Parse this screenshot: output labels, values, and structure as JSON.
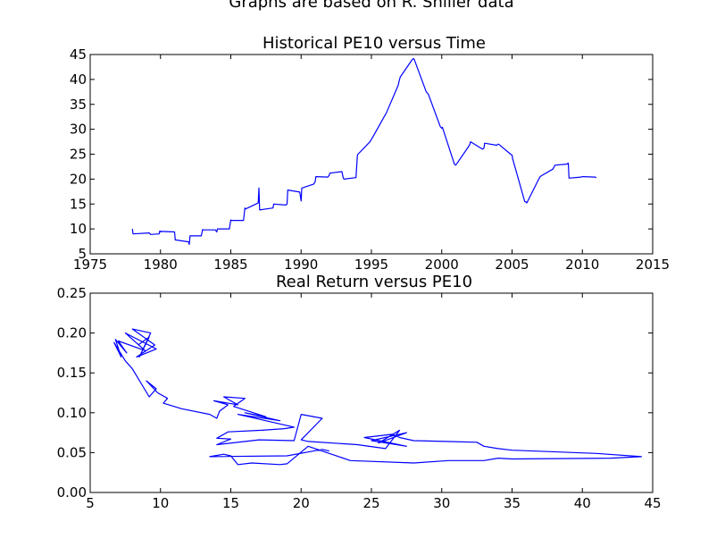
{
  "suptitle": "Graphs are based on R. Shiller data",
  "chart_data": [
    {
      "type": "line",
      "title": "Historical PE10 versus Time",
      "xlabel": "",
      "ylabel": "",
      "xlim": [
        1975,
        2015
      ],
      "ylim": [
        5,
        45
      ],
      "xticks": [
        "1975",
        "1980",
        "1985",
        "1990",
        "1995",
        "2000",
        "2005",
        "2010",
        "2015"
      ],
      "yticks": [
        "5",
        "10",
        "15",
        "20",
        "25",
        "30",
        "35",
        "40",
        "45"
      ],
      "grid": false,
      "color": "#0000ff",
      "x": [
        1978.0,
        1978.05,
        1979.2,
        1979.3,
        1979.9,
        1979.95,
        1980.0,
        1980.05,
        1981.0,
        1981.05,
        1982.0,
        1982.05,
        1982.1,
        1982.9,
        1983.0,
        1983.05,
        1983.9,
        1984.0,
        1984.05,
        1984.9,
        1985.0,
        1985.05,
        1985.9,
        1986.0,
        1986.05,
        1986.95,
        1987.0,
        1987.05,
        1987.5,
        1988.0,
        1988.05,
        1988.9,
        1989.0,
        1989.05,
        1989.9,
        1990.0,
        1990.05,
        1990.9,
        1991.0,
        1991.05,
        1991.9,
        1992.0,
        1992.05,
        1992.9,
        1993.0,
        1993.05,
        1993.9,
        1994.0,
        1994.05,
        1994.9,
        1995.0,
        1995.05,
        1995.9,
        1996.0,
        1996.05,
        1996.9,
        1997.0,
        1997.05,
        1997.9,
        1998.0,
        1998.05,
        1998.9,
        1999.0,
        1999.05,
        1999.9,
        2000.0,
        2000.05,
        2000.9,
        2001.0,
        2001.05,
        2001.9,
        2002.0,
        2002.05,
        2002.9,
        2003.0,
        2003.05,
        2003.9,
        2004.0,
        2004.05,
        2004.9,
        2005.0,
        2005.05,
        2005.9,
        2006.0,
        2006.05,
        2006.9,
        2007.0,
        2007.05,
        2007.9,
        2008.0,
        2008.05,
        2008.9,
        2009.0,
        2009.05,
        2009.9,
        2010.0,
        2010.05,
        2010.9,
        2011.0
      ],
      "y": [
        10.0,
        9.0,
        9.2,
        8.9,
        9.0,
        9.6,
        9.4,
        9.5,
        9.4,
        7.8,
        7.4,
        6.9,
        8.6,
        8.6,
        9.9,
        9.8,
        9.8,
        9.4,
        10.0,
        10.0,
        11.8,
        11.7,
        11.7,
        14.2,
        14.0,
        15.2,
        18.2,
        13.8,
        14.0,
        14.2,
        15.0,
        14.8,
        15.0,
        17.8,
        17.4,
        15.6,
        18.2,
        19.0,
        19.5,
        20.5,
        20.4,
        20.8,
        21.2,
        21.5,
        20.2,
        20.0,
        20.3,
        24.8,
        25.0,
        27.5,
        28.0,
        28.2,
        32.5,
        33.0,
        33.2,
        38.8,
        40.0,
        40.5,
        44.0,
        44.2,
        44.0,
        37.5,
        37.2,
        37.0,
        30.5,
        30.2,
        30.4,
        23.0,
        22.8,
        23.0,
        26.5,
        27.0,
        27.5,
        26.0,
        26.2,
        27.2,
        26.8,
        27.0,
        27.0,
        25.0,
        24.8,
        24.0,
        15.5,
        15.4,
        15.2,
        20.0,
        20.5,
        20.6,
        22.0,
        22.5,
        22.8,
        23.0,
        23.2,
        20.2,
        20.4,
        20.5,
        20.5,
        20.4,
        20.3
      ]
    },
    {
      "type": "line",
      "title": "Real Return versus PE10",
      "xlabel": "",
      "ylabel": "",
      "xlim": [
        5,
        45
      ],
      "ylim": [
        0.0,
        0.25
      ],
      "xticks": [
        "5",
        "10",
        "15",
        "20",
        "25",
        "30",
        "35",
        "40",
        "45"
      ],
      "yticks": [
        "0.00",
        "0.05",
        "0.10",
        "0.15",
        "0.20",
        "0.25"
      ],
      "grid": false,
      "color": "#0000ff",
      "x": [
        8.4,
        9.2,
        8.5,
        9.3,
        8.0,
        9.6,
        8.3,
        9.7,
        7.5,
        8.9,
        7.0,
        7.6,
        6.8,
        7.2,
        6.7,
        7.5,
        8.0,
        9.2,
        9.7,
        9.0,
        9.8,
        10.5,
        10.2,
        11.5,
        13.5,
        14.0,
        14.2,
        14.8,
        13.8,
        15.5,
        14.5,
        16.0,
        15.2,
        17.5,
        16.0,
        18.5,
        15.5,
        19.5,
        18.8,
        17.2,
        14.8,
        14.0,
        15.0,
        14.0,
        17.0,
        19.5,
        20.0,
        21.5,
        20.0,
        20.5,
        24.0,
        26.0,
        27.0,
        25.5,
        27.5,
        25.0,
        27.5,
        24.5,
        26.5,
        27.0,
        28.0,
        32.5,
        33.0,
        34.0,
        35.0,
        41.0,
        44.2,
        42.0,
        35.0,
        34.0,
        33.0,
        30.5,
        28.0,
        23.5,
        20.5,
        19.0,
        18.5,
        16.5,
        15.5,
        15.0,
        14.5,
        13.5,
        19.0,
        21.5,
        22.0
      ],
      "y": [
        0.185,
        0.195,
        0.17,
        0.2,
        0.205,
        0.185,
        0.17,
        0.18,
        0.2,
        0.178,
        0.19,
        0.175,
        0.192,
        0.17,
        0.188,
        0.165,
        0.155,
        0.12,
        0.13,
        0.14,
        0.125,
        0.118,
        0.112,
        0.105,
        0.098,
        0.093,
        0.102,
        0.11,
        0.115,
        0.11,
        0.12,
        0.118,
        0.108,
        0.095,
        0.1,
        0.09,
        0.098,
        0.082,
        0.08,
        0.078,
        0.076,
        0.068,
        0.067,
        0.06,
        0.066,
        0.065,
        0.098,
        0.093,
        0.066,
        0.064,
        0.06,
        0.055,
        0.078,
        0.062,
        0.075,
        0.065,
        0.058,
        0.069,
        0.073,
        0.069,
        0.065,
        0.063,
        0.058,
        0.055,
        0.053,
        0.049,
        0.045,
        0.043,
        0.042,
        0.043,
        0.04,
        0.04,
        0.037,
        0.04,
        0.058,
        0.036,
        0.035,
        0.037,
        0.035,
        0.046,
        0.048,
        0.045,
        0.046,
        0.054,
        0.052
      ]
    }
  ]
}
